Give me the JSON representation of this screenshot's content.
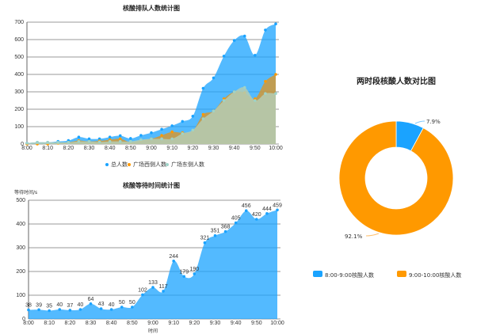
{
  "chart_data": [
    {
      "type": "area",
      "title": "核酸排队人数统计图",
      "x": [
        "8:00",
        "8:05",
        "8:10",
        "8:15",
        "8:20",
        "8:25",
        "8:30",
        "8:35",
        "8:40",
        "8:45",
        "8:50",
        "8:55",
        "9:00",
        "9:05",
        "9:10",
        "9:15",
        "9:20",
        "9:25",
        "9:30",
        "9:35",
        "9:40",
        "9:45",
        "9:50",
        "9:55",
        "10:00"
      ],
      "xticks": [
        "8:00",
        "8:10",
        "8:20",
        "8:30",
        "8:40",
        "8:50",
        "9:00",
        "9:10",
        "9:20",
        "9:30",
        "9:40",
        "9:50",
        "10:00"
      ],
      "yticks": [
        "0",
        "100",
        "200",
        "300",
        "400",
        "500",
        "600",
        "700"
      ],
      "ylim": [
        0,
        700
      ],
      "series": [
        {
          "name": "总人数",
          "color": "#1aa3ff",
          "values": [
            5,
            10,
            10,
            15,
            20,
            40,
            30,
            30,
            40,
            48,
            32,
            50,
            65,
            85,
            105,
            130,
            160,
            320,
            380,
            505,
            595,
            620,
            510,
            655,
            690
          ]
        },
        {
          "name": "广场西侧人数",
          "color": "#ff9900",
          "values": [
            0,
            0,
            0,
            5,
            10,
            20,
            15,
            18,
            25,
            30,
            10,
            20,
            30,
            50,
            70,
            65,
            75,
            170,
            190,
            260,
            300,
            295,
            260,
            360,
            400
          ]
        },
        {
          "name": "广场东侧人数",
          "color": "#9ed3c8",
          "values": [
            5,
            10,
            10,
            10,
            10,
            15,
            15,
            12,
            15,
            15,
            15,
            25,
            30,
            30,
            30,
            60,
            80,
            145,
            190,
            250,
            300,
            325,
            250,
            290,
            290
          ]
        }
      ],
      "legend": "bottom"
    },
    {
      "type": "area",
      "title": "核酸等待时间统计图",
      "ylabel": "等待时间/s",
      "xlabel": "时间",
      "x": [
        "8:00",
        "8:05",
        "8:10",
        "8:15",
        "8:20",
        "8:25",
        "8:30",
        "8:35",
        "8:40",
        "8:45",
        "8:50",
        "8:55",
        "9:00",
        "9:05",
        "9:10",
        "9:15",
        "9:20",
        "9:25",
        "9:30",
        "9:35",
        "9:40",
        "9:45",
        "9:50",
        "9:55",
        "10:00"
      ],
      "xticks": [
        "8:00",
        "8:10",
        "8:20",
        "8:30",
        "8:40",
        "8:50",
        "9:00",
        "9:10",
        "9:20",
        "9:30",
        "9:40",
        "9:50",
        "10:00"
      ],
      "yticks": [
        "0",
        "100",
        "200",
        "300",
        "400",
        "500"
      ],
      "ylim": [
        0,
        500
      ],
      "series": [
        {
          "name": "等待时间",
          "color": "#1aa3ff",
          "values": [
            38,
            39,
            35,
            40,
            37,
            40,
            64,
            43,
            40,
            50,
            50,
            102,
            133,
            117,
            244,
            179,
            190,
            321,
            351,
            368,
            405,
            456,
            420,
            444,
            459
          ]
        }
      ]
    },
    {
      "type": "pie",
      "title": "两时段核酸人数对比图",
      "slices": [
        {
          "label": "8:00-9:00核酸人数",
          "value": 7.9,
          "text": "7.9%",
          "color": "#1aa3ff"
        },
        {
          "label": "9:00-10:00核酸人数",
          "value": 92.1,
          "text": "92.1%",
          "color": "#ff9900"
        }
      ],
      "legend": "bottom"
    }
  ]
}
